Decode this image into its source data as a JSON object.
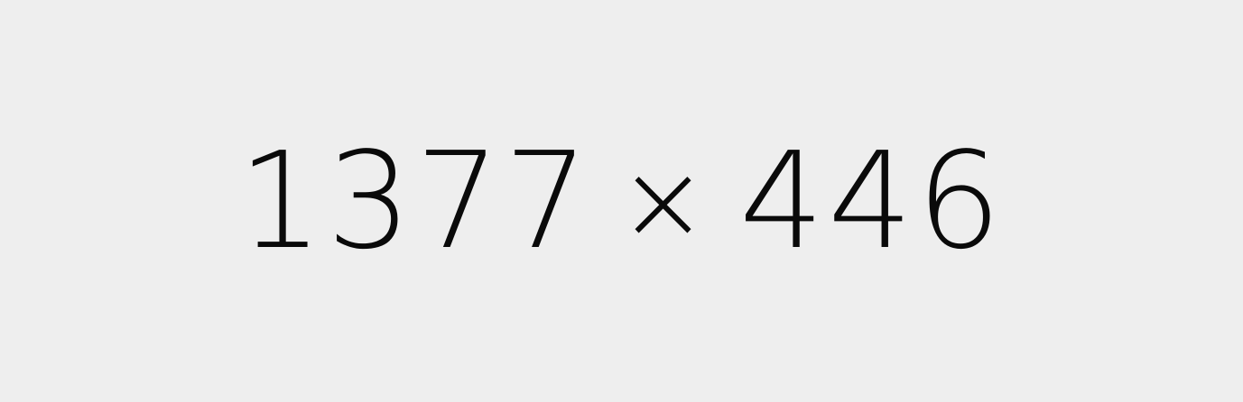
{
  "placeholder": {
    "width_text": "1377",
    "separator": "×",
    "height_text": "446",
    "background_color": "#eeeeee",
    "text_color": "#0a0a0a"
  }
}
